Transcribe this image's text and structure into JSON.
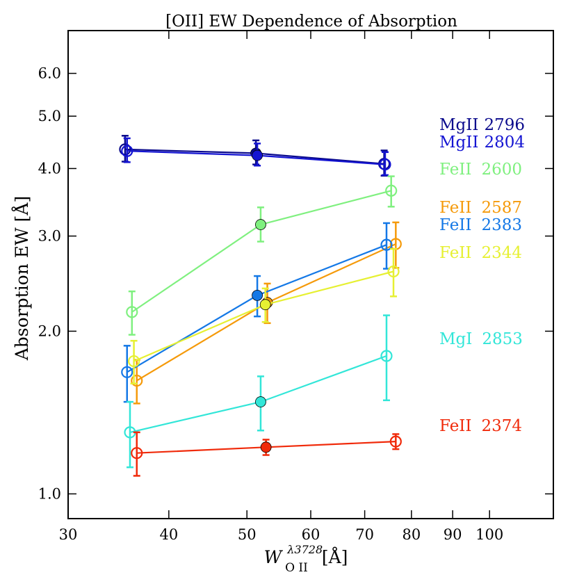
{
  "chart_data": {
    "type": "line",
    "title": "[OII] EW Dependence of Absorption",
    "xlabel": {
      "base": "W",
      "sup": "λ3728",
      "sub": "O II",
      "unit": "[Å]"
    },
    "ylabel": "Absorption EW [Å]",
    "xscale": "log",
    "yscale": "log",
    "xlim": [
      30,
      120
    ],
    "ylim": [
      0.9,
      7.2
    ],
    "x_ticks": [
      {
        "value": 30,
        "label": "30"
      },
      {
        "value": 40,
        "label": "40"
      },
      {
        "value": 50,
        "label": "50"
      },
      {
        "value": 60,
        "label": "60"
      },
      {
        "value": 70,
        "label": "70"
      },
      {
        "value": 80,
        "label": "80"
      },
      {
        "value": 90,
        "label": "90"
      },
      {
        "value": 100,
        "label": "100"
      }
    ],
    "y_ticks": [
      {
        "value": 1.0,
        "label": "1.0"
      },
      {
        "value": 2.0,
        "label": "2.0"
      },
      {
        "value": 3.0,
        "label": "3.0"
      },
      {
        "value": 4.0,
        "label": "4.0"
      },
      {
        "value": 5.0,
        "label": "5.0"
      },
      {
        "value": 6.0,
        "label": "6.0"
      }
    ],
    "series": [
      {
        "name": "MgII 2796",
        "ion": "MgII",
        "wavelength": "2796",
        "color": "#0a0a8c",
        "x": [
          35.3,
          51.3,
          74.0
        ],
        "y": [
          4.34,
          4.27,
          4.08
        ],
        "yerr_low": [
          0.22,
          0.2,
          0.2
        ],
        "yerr_high": [
          0.26,
          0.24,
          0.24
        ],
        "filled": [
          false,
          true,
          false
        ]
      },
      {
        "name": "MgII 2804",
        "ion": "MgII",
        "wavelength": "2804",
        "color": "#1414d2",
        "x": [
          35.5,
          51.5,
          74.2
        ],
        "y": [
          4.31,
          4.23,
          4.07
        ],
        "yerr_low": [
          0.2,
          0.18,
          0.18
        ],
        "yerr_high": [
          0.24,
          0.22,
          0.22
        ],
        "filled": [
          false,
          true,
          false
        ]
      },
      {
        "name": "FeII 2600",
        "ion": "FeII",
        "wavelength": "2600",
        "color": "#7ff07f",
        "x": [
          36.0,
          52.0,
          75.5
        ],
        "y": [
          2.17,
          3.15,
          3.64
        ],
        "yerr_low": [
          0.2,
          0.22,
          0.24
        ],
        "yerr_high": [
          0.2,
          0.24,
          0.23
        ],
        "filled": [
          false,
          true,
          false
        ]
      },
      {
        "name": "FeII 2587",
        "ion": "FeII",
        "wavelength": "2587",
        "color": "#f59a0a",
        "x": [
          36.5,
          53.0,
          76.5
        ],
        "y": [
          1.62,
          2.26,
          2.9
        ],
        "yerr_low": [
          0.15,
          0.19,
          0.28
        ],
        "yerr_high": [
          0.15,
          0.19,
          0.28
        ],
        "filled": [
          false,
          true,
          false
        ]
      },
      {
        "name": "FeII 2383",
        "ion": "FeII",
        "wavelength": "2383",
        "color": "#1478e6",
        "x": [
          35.5,
          51.5,
          74.5
        ],
        "y": [
          1.68,
          2.33,
          2.89
        ],
        "yerr_low": [
          0.2,
          0.2,
          0.28
        ],
        "yerr_high": [
          0.2,
          0.2,
          0.28
        ],
        "filled": [
          false,
          true,
          false
        ]
      },
      {
        "name": "FeII 2344",
        "ion": "FeII",
        "wavelength": "2344",
        "color": "#e6f032",
        "x": [
          36.2,
          52.7,
          76.0
        ],
        "y": [
          1.76,
          2.24,
          2.58
        ],
        "yerr_low": [
          0.16,
          0.16,
          0.26
        ],
        "yerr_high": [
          0.16,
          0.16,
          0.26
        ],
        "filled": [
          false,
          true,
          false
        ]
      },
      {
        "name": "MgI 2853",
        "ion": "MgI",
        "wavelength": "2853",
        "color": "#32e6d8",
        "x": [
          35.8,
          52.0,
          74.5
        ],
        "y": [
          1.3,
          1.48,
          1.8
        ],
        "yerr_low": [
          0.18,
          0.17,
          0.31
        ],
        "yerr_high": [
          0.18,
          0.17,
          0.34
        ],
        "filled": [
          false,
          true,
          false
        ]
      },
      {
        "name": "FeII 2374",
        "ion": "FeII",
        "wavelength": "2374",
        "color": "#f02a0a",
        "x": [
          36.5,
          52.8,
          76.5
        ],
        "y": [
          1.19,
          1.22,
          1.25
        ],
        "yerr_low": [
          0.11,
          0.04,
          0.04
        ],
        "yerr_high": [
          0.11,
          0.04,
          0.04
        ],
        "filled": [
          false,
          true,
          false
        ]
      }
    ]
  }
}
